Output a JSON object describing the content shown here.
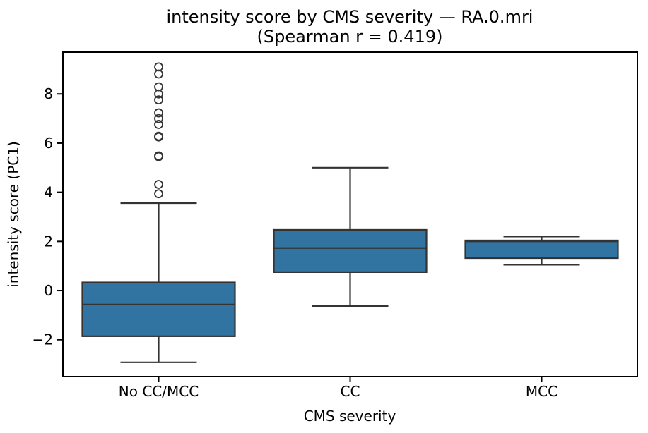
{
  "chart_data": {
    "type": "box",
    "title": "intensity score by CMS severity — RA.0.mri",
    "subtitle": "(Spearman r = 0.419)",
    "xlabel": "CMS severity",
    "ylabel": "intensity score (PC1)",
    "categories": [
      "No CC/MCC",
      "CC",
      "MCC"
    ],
    "ylim": [
      -3.5,
      9.7
    ],
    "yticks": [
      -2,
      0,
      2,
      4,
      6,
      8
    ],
    "grid": false,
    "boxes": [
      {
        "category": "No CC/MCC",
        "whisker_low": -2.92,
        "q1": -1.86,
        "median": -0.57,
        "q3": 0.33,
        "whisker_high": 3.56,
        "outliers": [
          3.94,
          4.32,
          5.45,
          5.48,
          6.25,
          6.28,
          6.76,
          7.0,
          7.23,
          7.76,
          8.0,
          8.29,
          8.81,
          9.1
        ]
      },
      {
        "category": "CC",
        "whisker_low": -0.63,
        "q1": 0.75,
        "median": 1.73,
        "q3": 2.47,
        "whisker_high": 5.0,
        "outliers": []
      },
      {
        "category": "MCC",
        "whisker_low": 1.05,
        "q1": 1.32,
        "median": 2.0,
        "q3": 2.04,
        "whisker_high": 2.2,
        "outliers": []
      }
    ],
    "colors": {
      "box_fill": "#3274a1",
      "box_edge": "#333333",
      "axis": "#000000",
      "background": "#ffffff"
    }
  }
}
